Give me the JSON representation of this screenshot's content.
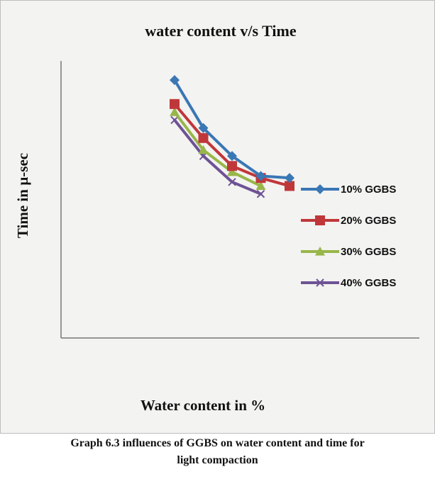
{
  "chart_data": {
    "type": "line",
    "title": "water content  v/s Time",
    "xlabel": "Water content in %",
    "ylabel": "Time in µ-sec",
    "grid": false,
    "legend_position": "right",
    "series": [
      {
        "name": "10% GGBS",
        "color": "#3a77b4",
        "marker": "diamond",
        "x": [
          1,
          2,
          3,
          4,
          5
        ],
        "values": [
          100,
          76,
          62,
          52,
          51
        ]
      },
      {
        "name": "20% GGBS",
        "color": "#c0373a",
        "marker": "square",
        "x": [
          1,
          2,
          3,
          4,
          5
        ],
        "values": [
          88,
          71,
          57,
          51,
          47
        ]
      },
      {
        "name": "30% GGBS",
        "color": "#98b64a",
        "marker": "triangle",
        "x": [
          1,
          2,
          3,
          4
        ],
        "values": [
          84,
          65,
          54,
          47
        ]
      },
      {
        "name": "40% GGBS",
        "color": "#6e5295",
        "marker": "x",
        "x": [
          1,
          2,
          3,
          4
        ],
        "values": [
          80,
          62,
          49,
          43
        ]
      }
    ]
  },
  "caption": {
    "line1": "Graph 6.3 influences of GGBS on water content and time for",
    "line2": "light compaction"
  }
}
